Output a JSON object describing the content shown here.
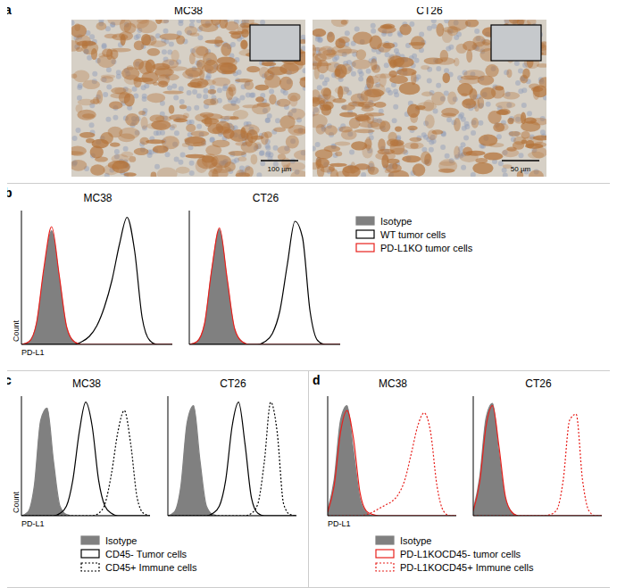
{
  "panel_labels": [
    "a",
    "b",
    "c",
    "d"
  ],
  "images": [
    {
      "title": "MC38",
      "scale_bar": "100 µm"
    },
    {
      "title": "CT26",
      "scale_bar": "50 µm"
    }
  ],
  "chart_data": [
    {
      "type": "area",
      "title": "MC38",
      "x_label": "PD-L1",
      "y_label": "Count",
      "tick_labels": false,
      "x": [
        0,
        5,
        10,
        15,
        20,
        25,
        30,
        35,
        40,
        45,
        50,
        55,
        60,
        65,
        70,
        75,
        80,
        85,
        90,
        95,
        100
      ],
      "xlim": [
        0,
        100
      ],
      "ylim": [
        0,
        100
      ],
      "series": [
        {
          "name": "Isotype",
          "color": "#808080",
          "line_style": "filled",
          "values": [
            0,
            2,
            15,
            55,
            85,
            50,
            12,
            2,
            0,
            0,
            0,
            0,
            0,
            0,
            0,
            0,
            0,
            0,
            0,
            0,
            0
          ]
        },
        {
          "name": "WT tumor cells",
          "color": "#000000",
          "line_style": "solid",
          "values": [
            0,
            0,
            0,
            0,
            0,
            0,
            0,
            0,
            2,
            6,
            14,
            28,
            48,
            75,
            95,
            70,
            20,
            3,
            0,
            0,
            0
          ]
        },
        {
          "name": "PD-L1KO tumor cells",
          "color": "#e8201c",
          "line_style": "solid",
          "values": [
            0,
            2,
            16,
            58,
            88,
            52,
            13,
            2,
            0,
            0,
            0,
            0,
            0,
            0,
            0,
            0,
            0,
            0,
            0,
            0,
            0
          ]
        }
      ]
    },
    {
      "type": "area",
      "title": "CT26",
      "tick_labels": false,
      "x": [
        0,
        5,
        10,
        15,
        20,
        25,
        30,
        35,
        40,
        45,
        50,
        55,
        60,
        65,
        70,
        75,
        80,
        85,
        90,
        95,
        100
      ],
      "xlim": [
        0,
        100
      ],
      "ylim": [
        0,
        100
      ],
      "series": [
        {
          "name": "Isotype",
          "color": "#808080",
          "line_style": "filled",
          "values": [
            0,
            2,
            14,
            56,
            86,
            48,
            11,
            2,
            0,
            0,
            0,
            0,
            0,
            0,
            0,
            0,
            0,
            0,
            0,
            0,
            0
          ]
        },
        {
          "name": "WT tumor cells",
          "color": "#000000",
          "line_style": "solid",
          "values": [
            0,
            0,
            0,
            0,
            0,
            0,
            0,
            0,
            0,
            0,
            2,
            8,
            25,
            60,
            92,
            80,
            25,
            3,
            0,
            0,
            0
          ]
        },
        {
          "name": "PD-L1KO tumor cells",
          "color": "#e8201c",
          "line_style": "solid",
          "values": [
            0,
            2,
            15,
            57,
            87,
            50,
            12,
            2,
            0,
            0,
            0,
            0,
            0,
            0,
            0,
            0,
            0,
            0,
            0,
            0,
            0
          ]
        }
      ]
    },
    {
      "type": "area",
      "title": "MC38",
      "x_label": "PD-L1",
      "y_label": "Count",
      "tick_labels": false,
      "x": [
        0,
        5,
        10,
        15,
        20,
        25,
        30,
        35,
        40,
        45,
        50,
        55,
        60,
        65,
        70,
        75,
        80,
        85,
        90,
        95,
        100
      ],
      "xlim": [
        0,
        100
      ],
      "ylim": [
        0,
        100
      ],
      "series": [
        {
          "name": "Isotype",
          "color": "#808080",
          "line_style": "filled",
          "values": [
            0,
            3,
            25,
            80,
            90,
            45,
            8,
            1,
            0,
            0,
            0,
            0,
            0,
            0,
            0,
            0,
            0,
            0,
            0,
            0,
            0
          ]
        },
        {
          "name": "CD45- Tumor cells",
          "color": "#000000",
          "line_style": "solid",
          "values": [
            0,
            0,
            0,
            0,
            0,
            0,
            2,
            8,
            30,
            70,
            95,
            75,
            30,
            8,
            2,
            0,
            0,
            0,
            0,
            0,
            0
          ]
        },
        {
          "name": "CD45+ Immune cells",
          "color": "#000000",
          "line_style": "dotted",
          "values": [
            0,
            0,
            0,
            0,
            0,
            0,
            0,
            0,
            0,
            0,
            0,
            0,
            2,
            10,
            35,
            70,
            88,
            60,
            15,
            2,
            0
          ]
        }
      ]
    },
    {
      "type": "area",
      "title": "CT26",
      "tick_labels": false,
      "x": [
        0,
        5,
        10,
        15,
        20,
        25,
        30,
        35,
        40,
        45,
        50,
        55,
        60,
        65,
        70,
        75,
        80,
        85,
        90,
        95,
        100
      ],
      "xlim": [
        0,
        100
      ],
      "ylim": [
        0,
        100
      ],
      "series": [
        {
          "name": "Isotype",
          "color": "#808080",
          "line_style": "filled",
          "values": [
            0,
            3,
            24,
            78,
            92,
            46,
            8,
            1,
            0,
            0,
            0,
            0,
            0,
            0,
            0,
            0,
            0,
            0,
            0,
            0,
            0
          ]
        },
        {
          "name": "CD45- Tumor cells",
          "color": "#000000",
          "line_style": "solid",
          "values": [
            0,
            0,
            0,
            0,
            0,
            0,
            0,
            2,
            8,
            30,
            75,
            95,
            60,
            15,
            2,
            0,
            0,
            0,
            0,
            0,
            0
          ]
        },
        {
          "name": "CD45+ Immune cells",
          "color": "#000000",
          "line_style": "dotted",
          "values": [
            0,
            0,
            0,
            0,
            0,
            0,
            0,
            0,
            0,
            0,
            0,
            0,
            0,
            2,
            10,
            45,
            95,
            70,
            10,
            1,
            0
          ]
        }
      ]
    },
    {
      "type": "area",
      "title": "MC38",
      "x_label": "PD-L1",
      "tick_labels": false,
      "x": [
        0,
        5,
        10,
        15,
        20,
        25,
        30,
        35,
        40,
        45,
        50,
        55,
        60,
        65,
        70,
        75,
        80,
        85,
        90,
        95,
        100
      ],
      "xlim": [
        0,
        100
      ],
      "ylim": [
        0,
        100
      ],
      "series": [
        {
          "name": "Isotype",
          "color": "#808080",
          "line_style": "filled",
          "values": [
            5,
            30,
            80,
            92,
            55,
            15,
            3,
            0,
            0,
            0,
            0,
            0,
            0,
            0,
            0,
            0,
            0,
            0,
            0,
            0,
            0
          ]
        },
        {
          "name": "PD-L1KOCD45- tumor cells",
          "color": "#e8201c",
          "line_style": "solid",
          "values": [
            3,
            25,
            70,
            88,
            65,
            20,
            4,
            1,
            0,
            0,
            0,
            0,
            0,
            0,
            0,
            0,
            0,
            0,
            0,
            0,
            0
          ]
        },
        {
          "name": "PD-L1KOCD45+ Immune cells",
          "color": "#e8201c",
          "line_style": "dotted",
          "values": [
            0,
            0,
            0,
            0,
            0,
            0,
            1,
            3,
            6,
            9,
            12,
            18,
            30,
            52,
            75,
            86,
            70,
            25,
            4,
            0,
            0
          ]
        }
      ]
    },
    {
      "type": "area",
      "title": "CT26",
      "tick_labels": false,
      "x": [
        0,
        5,
        10,
        15,
        20,
        25,
        30,
        35,
        40,
        45,
        50,
        55,
        60,
        65,
        70,
        75,
        80,
        85,
        90,
        95,
        100
      ],
      "xlim": [
        0,
        100
      ],
      "ylim": [
        0,
        100
      ],
      "series": [
        {
          "name": "Isotype",
          "color": "#808080",
          "line_style": "filled",
          "values": [
            5,
            32,
            82,
            94,
            52,
            14,
            3,
            0,
            0,
            0,
            0,
            0,
            0,
            0,
            0,
            0,
            0,
            0,
            0,
            0,
            0
          ]
        },
        {
          "name": "PD-L1KOCD45- tumor cells",
          "color": "#e8201c",
          "line_style": "solid",
          "values": [
            4,
            28,
            75,
            92,
            58,
            16,
            3,
            0,
            0,
            0,
            0,
            0,
            0,
            0,
            0,
            0,
            0,
            0,
            0,
            0,
            0
          ]
        },
        {
          "name": "PD-L1KOCD45+ Immune cells",
          "color": "#e8201c",
          "line_style": "dotted",
          "values": [
            0,
            0,
            0,
            0,
            0,
            0,
            0,
            0,
            0,
            0,
            0,
            0,
            1,
            5,
            30,
            80,
            85,
            30,
            4,
            0,
            0
          ]
        }
      ]
    }
  ]
}
